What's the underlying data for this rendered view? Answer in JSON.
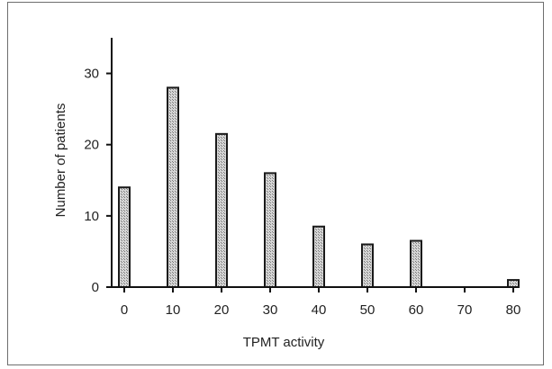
{
  "chart_data": {
    "type": "bar",
    "xlabel": "TPMT activity",
    "ylabel": "Number of patients",
    "x_ticks": [
      "0",
      "10",
      "20",
      "30",
      "40",
      "50",
      "60",
      "70",
      "80"
    ],
    "y_ticks": [
      "0",
      "10",
      "20",
      "30"
    ],
    "categories": [
      "0",
      "10",
      "20",
      "30",
      "40",
      "50",
      "60",
      "70",
      "80"
    ],
    "values": [
      14,
      28,
      21.5,
      16,
      8.5,
      6,
      6.5,
      0,
      1
    ],
    "xlim": [
      -4,
      86
    ],
    "ylim": [
      0,
      35
    ],
    "grid": false,
    "bar_fill": "#c8c8c8",
    "bar_stroke": "#1a1a1a"
  }
}
